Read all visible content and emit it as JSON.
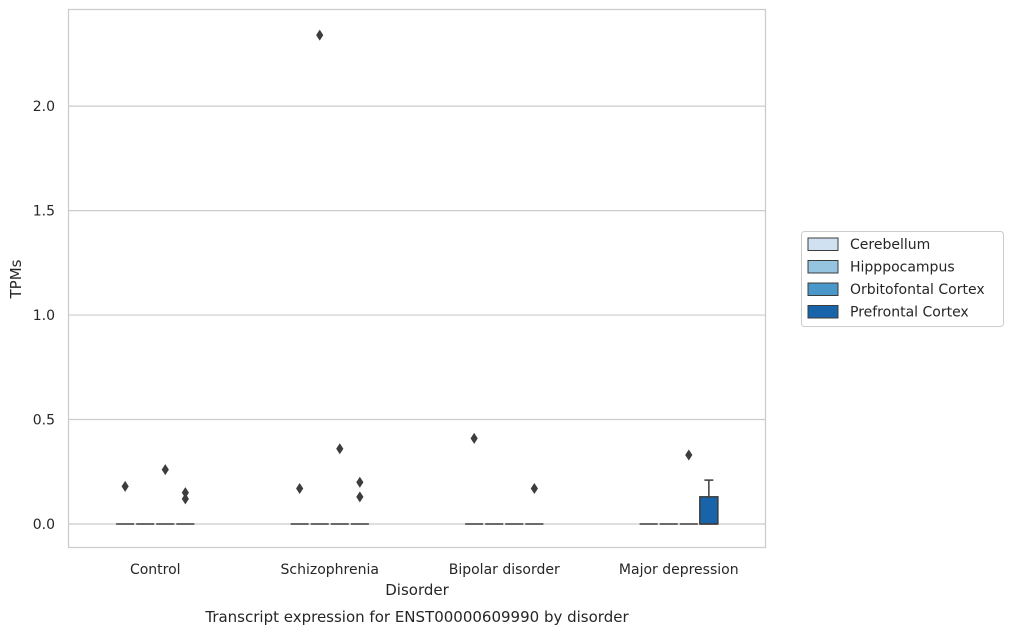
{
  "chart_data": {
    "type": "box",
    "caption": "Transcript expression for ENST00000609990 by disorder",
    "xlabel": "Disorder",
    "ylabel": "TPMs",
    "categories": [
      "Control",
      "Schizophrenia",
      "Bipolar disorder",
      "Major depression"
    ],
    "yticks": [
      0.0,
      0.5,
      1.0,
      1.5,
      2.0
    ],
    "ytick_labels": [
      "0.0",
      "0.5",
      "1.0",
      "1.5",
      "2.0"
    ],
    "ylim": [
      -0.115,
      2.465
    ],
    "grid": "horizontal",
    "legend_position": "right",
    "series": [
      {
        "name": "Cerebellum",
        "color": "#d0e1f2",
        "boxes": [
          {
            "q1": 0,
            "median": 0,
            "q3": 0,
            "whisker_low": 0,
            "whisker_high": 0,
            "outliers": [
              0.18
            ]
          },
          {
            "q1": 0,
            "median": 0,
            "q3": 0,
            "whisker_low": 0,
            "whisker_high": 0,
            "outliers": [
              0.17
            ]
          },
          {
            "q1": 0,
            "median": 0,
            "q3": 0,
            "whisker_low": 0,
            "whisker_high": 0,
            "outliers": [
              0.41
            ]
          },
          {
            "q1": 0,
            "median": 0,
            "q3": 0,
            "whisker_low": 0,
            "whisker_high": 0,
            "outliers": []
          }
        ]
      },
      {
        "name": "Hipppocampus",
        "color": "#94c4df",
        "boxes": [
          {
            "q1": 0,
            "median": 0,
            "q3": 0,
            "whisker_low": 0,
            "whisker_high": 0,
            "outliers": []
          },
          {
            "q1": 0,
            "median": 0,
            "q3": 0,
            "whisker_low": 0,
            "whisker_high": 0,
            "outliers": [
              2.34
            ]
          },
          {
            "q1": 0,
            "median": 0,
            "q3": 0,
            "whisker_low": 0,
            "whisker_high": 0,
            "outliers": []
          },
          {
            "q1": 0,
            "median": 0,
            "q3": 0,
            "whisker_low": 0,
            "whisker_high": 0,
            "outliers": []
          }
        ]
      },
      {
        "name": "Orbitofontal Cortex",
        "color": "#4a98c9",
        "boxes": [
          {
            "q1": 0,
            "median": 0,
            "q3": 0,
            "whisker_low": 0,
            "whisker_high": 0,
            "outliers": [
              0.26
            ]
          },
          {
            "q1": 0,
            "median": 0,
            "q3": 0,
            "whisker_low": 0,
            "whisker_high": 0,
            "outliers": [
              0.36
            ]
          },
          {
            "q1": 0,
            "median": 0,
            "q3": 0,
            "whisker_low": 0,
            "whisker_high": 0,
            "outliers": []
          },
          {
            "q1": 0,
            "median": 0,
            "q3": 0,
            "whisker_low": 0,
            "whisker_high": 0,
            "outliers": [
              0.33
            ]
          }
        ]
      },
      {
        "name": "Prefrontal Cortex",
        "color": "#1764ab",
        "boxes": [
          {
            "q1": 0,
            "median": 0,
            "q3": 0,
            "whisker_low": 0,
            "whisker_high": 0,
            "outliers": [
              0.15,
              0.12
            ]
          },
          {
            "q1": 0,
            "median": 0,
            "q3": 0,
            "whisker_low": 0,
            "whisker_high": 0,
            "outliers": [
              0.2,
              0.13
            ]
          },
          {
            "q1": 0,
            "median": 0,
            "q3": 0,
            "whisker_low": 0,
            "whisker_high": 0,
            "outliers": [
              0.17
            ]
          },
          {
            "q1": 0,
            "median": 0,
            "q3": 0.13,
            "whisker_low": 0,
            "whisker_high": 0.21,
            "outliers": []
          }
        ]
      }
    ]
  }
}
